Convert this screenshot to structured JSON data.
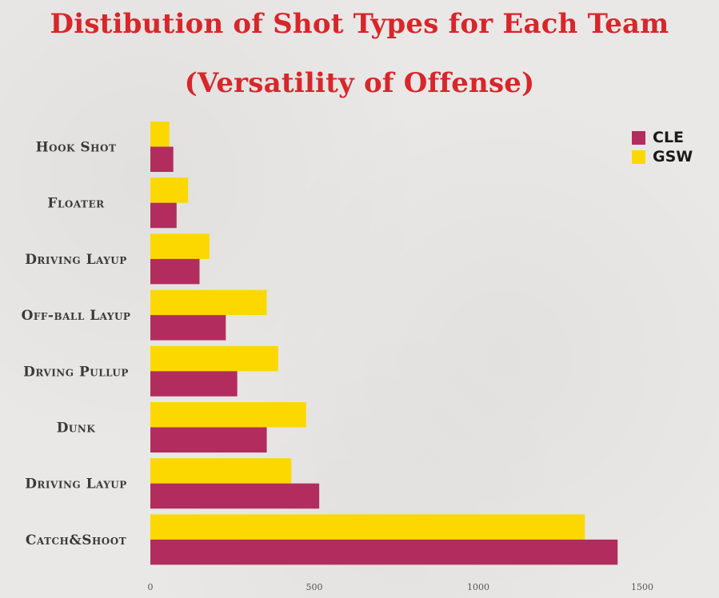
{
  "chart_data": {
    "type": "bar",
    "orientation": "horizontal",
    "title": "Distibution of Shot Types for Each Team",
    "subtitle": "(Versatility of Offense)",
    "categories": [
      "Hook Shot",
      "Floater",
      "Driving Layup",
      "Off-ball Layup",
      "Drving Pullup",
      "Dunk",
      "Driving Layup",
      "Catch&Shoot"
    ],
    "series": [
      {
        "name": "CLE",
        "color": "#b22d5d",
        "values": [
          70,
          80,
          150,
          230,
          265,
          355,
          515,
          1425
        ]
      },
      {
        "name": "GSW",
        "color": "#fcd800",
        "values": [
          58,
          115,
          180,
          355,
          390,
          475,
          430,
          1325
        ]
      }
    ],
    "xlim": [
      0,
      1500
    ],
    "xticks": [
      0,
      500,
      1000,
      1500
    ],
    "xlabel": "",
    "ylabel": "",
    "grid": false,
    "legend": "top-right"
  }
}
